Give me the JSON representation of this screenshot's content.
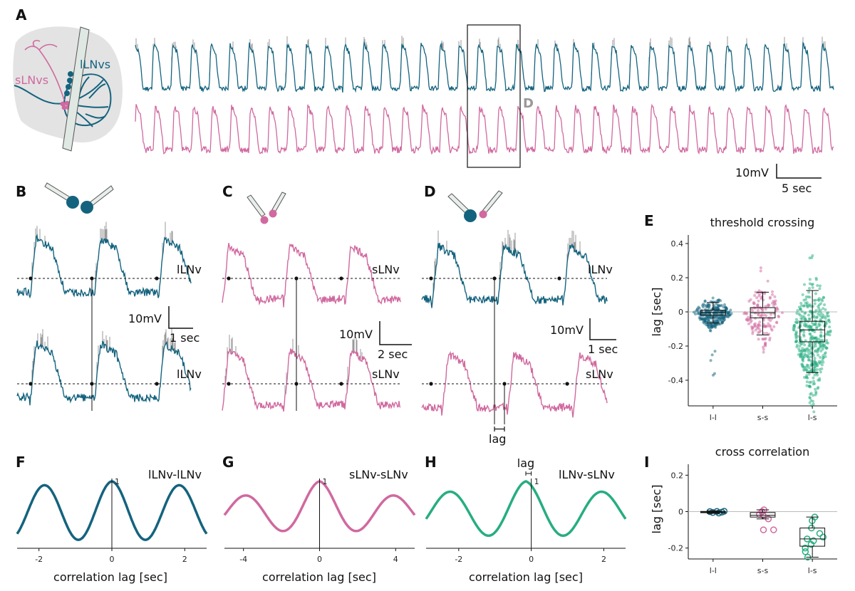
{
  "panels": {
    "A": {
      "label": "A",
      "cell_slnvs": "sLNvs",
      "cell_llnvs": "lLNvs",
      "box_label": "D",
      "scale_mv": "10mV",
      "scale_t": "5 sec"
    },
    "B": {
      "label": "B",
      "top": "lLNv",
      "bottom": "lLNv",
      "scale_mv": "10mV",
      "scale_t": "1 sec"
    },
    "C": {
      "label": "C",
      "top": "sLNv",
      "bottom": "sLNv",
      "scale_mv": "10mV",
      "scale_t": "2 sec"
    },
    "D": {
      "label": "D",
      "top": "lLNv",
      "bottom": "sLNv",
      "scale_mv": "10mV",
      "scale_t": "1 sec",
      "lag": "lag"
    },
    "E": {
      "label": "E",
      "title": "threshold crossing",
      "ylabel": "lag [sec]"
    },
    "F": {
      "label": "F",
      "pair": "lLNv-lLNv",
      "peak": "1",
      "xlabel": "correlation lag [sec]"
    },
    "G": {
      "label": "G",
      "pair": "sLNv-sLNv",
      "peak": "1",
      "xlabel": "correlation lag [sec]"
    },
    "H": {
      "label": "H",
      "pair": "lLNv-sLNv",
      "peak": "1",
      "lag": "lag",
      "xlabel": "correlation lag [sec]"
    },
    "I": {
      "label": "I",
      "title": "cross correlation",
      "ylabel": "lag [sec]"
    }
  },
  "colors": {
    "llnv": "#14637e",
    "slnv": "#d0699f",
    "pair_ls": "#26ad82",
    "raw_spikes": "#999999"
  },
  "chart_data": [
    {
      "id": "E",
      "type": "box",
      "title": "threshold crossing",
      "ylabel": "lag [sec]",
      "categories": [
        "l-l",
        "s-s",
        "l-s"
      ],
      "ylim": [
        -0.55,
        0.45
      ],
      "yticks": [
        -0.4,
        -0.2,
        0,
        0.2,
        0.4
      ],
      "ytick_labels": [
        "-0.4",
        "-0.2",
        "0",
        "0.2",
        "0.4"
      ],
      "boxes": [
        {
          "category": "l-l",
          "whisker_low": -0.065,
          "q1": -0.02,
          "median": -0.003,
          "q3": 0.01,
          "whisker_high": 0.055,
          "color": "#14637e"
        },
        {
          "category": "s-s",
          "whisker_low": -0.135,
          "q1": -0.035,
          "median": -0.005,
          "q3": 0.025,
          "whisker_high": 0.115,
          "color": "#d0699f"
        },
        {
          "category": "l-s",
          "whisker_low": -0.355,
          "q1": -0.175,
          "median": -0.105,
          "q3": -0.055,
          "whisker_high": 0.125,
          "color": "#26ad82"
        }
      ],
      "outlier_range": {
        "l-l": [
          -0.41,
          0.25
        ],
        "s-s": [
          -0.24,
          0.28
        ],
        "l-s": [
          -0.5,
          0.35
        ]
      },
      "zero_line": true
    },
    {
      "id": "F",
      "type": "line",
      "pair": "lLNv-lLNv",
      "xlabel": "correlation lag [sec]",
      "xlim": [
        -2.6,
        2.6
      ],
      "xticks": [
        -2,
        0,
        2
      ],
      "xtick_labels": [
        "-2",
        "0",
        "2"
      ],
      "peak_value": 1,
      "period_sec": 1.85,
      "color": "#14637e"
    },
    {
      "id": "G",
      "type": "line",
      "pair": "sLNv-sLNv",
      "xlabel": "correlation lag [sec]",
      "xlim": [
        -5,
        5
      ],
      "xticks": [
        -4,
        0,
        4
      ],
      "xtick_labels": [
        "-4",
        "0",
        "4"
      ],
      "peak_value": 1,
      "period_sec": 3.9,
      "color": "#d0699f"
    },
    {
      "id": "H",
      "type": "line",
      "pair": "lLNv-sLNv",
      "xlabel": "correlation lag [sec]",
      "xlim": [
        -2.9,
        2.6
      ],
      "xticks": [
        -2,
        0,
        2
      ],
      "xtick_labels": [
        "-2",
        "0",
        "2"
      ],
      "peak_value": 1,
      "peak_lag_sec": -0.15,
      "period_sec": 2.1,
      "color": "#26ad82"
    },
    {
      "id": "I",
      "type": "box",
      "title": "cross correlation",
      "ylabel": "lag [sec]",
      "categories": [
        "l-l",
        "s-s",
        "l-s"
      ],
      "ylim": [
        -0.26,
        0.26
      ],
      "yticks": [
        -0.2,
        0,
        0.2
      ],
      "ytick_labels": [
        "-0.2",
        "0",
        "0.2"
      ],
      "boxes": [
        {
          "category": "l-l",
          "whisker_low": -0.01,
          "q1": -0.006,
          "median": -0.002,
          "q3": 0.001,
          "whisker_high": 0.005,
          "color": "#14637e"
        },
        {
          "category": "s-s",
          "whisker_low": -0.04,
          "q1": -0.03,
          "median": -0.02,
          "q3": -0.005,
          "whisker_high": 0.01,
          "color": "#d0699f"
        },
        {
          "category": "l-s",
          "whisker_low": -0.25,
          "q1": -0.19,
          "median": -0.15,
          "q3": -0.09,
          "whisker_high": -0.03,
          "color": "#26ad82"
        }
      ],
      "points": {
        "l-l": [
          -0.005,
          0.0,
          -0.003,
          0.002,
          -0.008,
          0.001
        ],
        "s-s": [
          -0.1,
          -0.1,
          -0.04,
          -0.02,
          0.0,
          0.01,
          -0.015
        ],
        "l-s": [
          -0.03,
          -0.05,
          -0.09,
          -0.12,
          -0.14,
          -0.15,
          -0.16,
          -0.18,
          -0.2,
          -0.22,
          -0.25
        ]
      },
      "zero_line": true
    }
  ]
}
